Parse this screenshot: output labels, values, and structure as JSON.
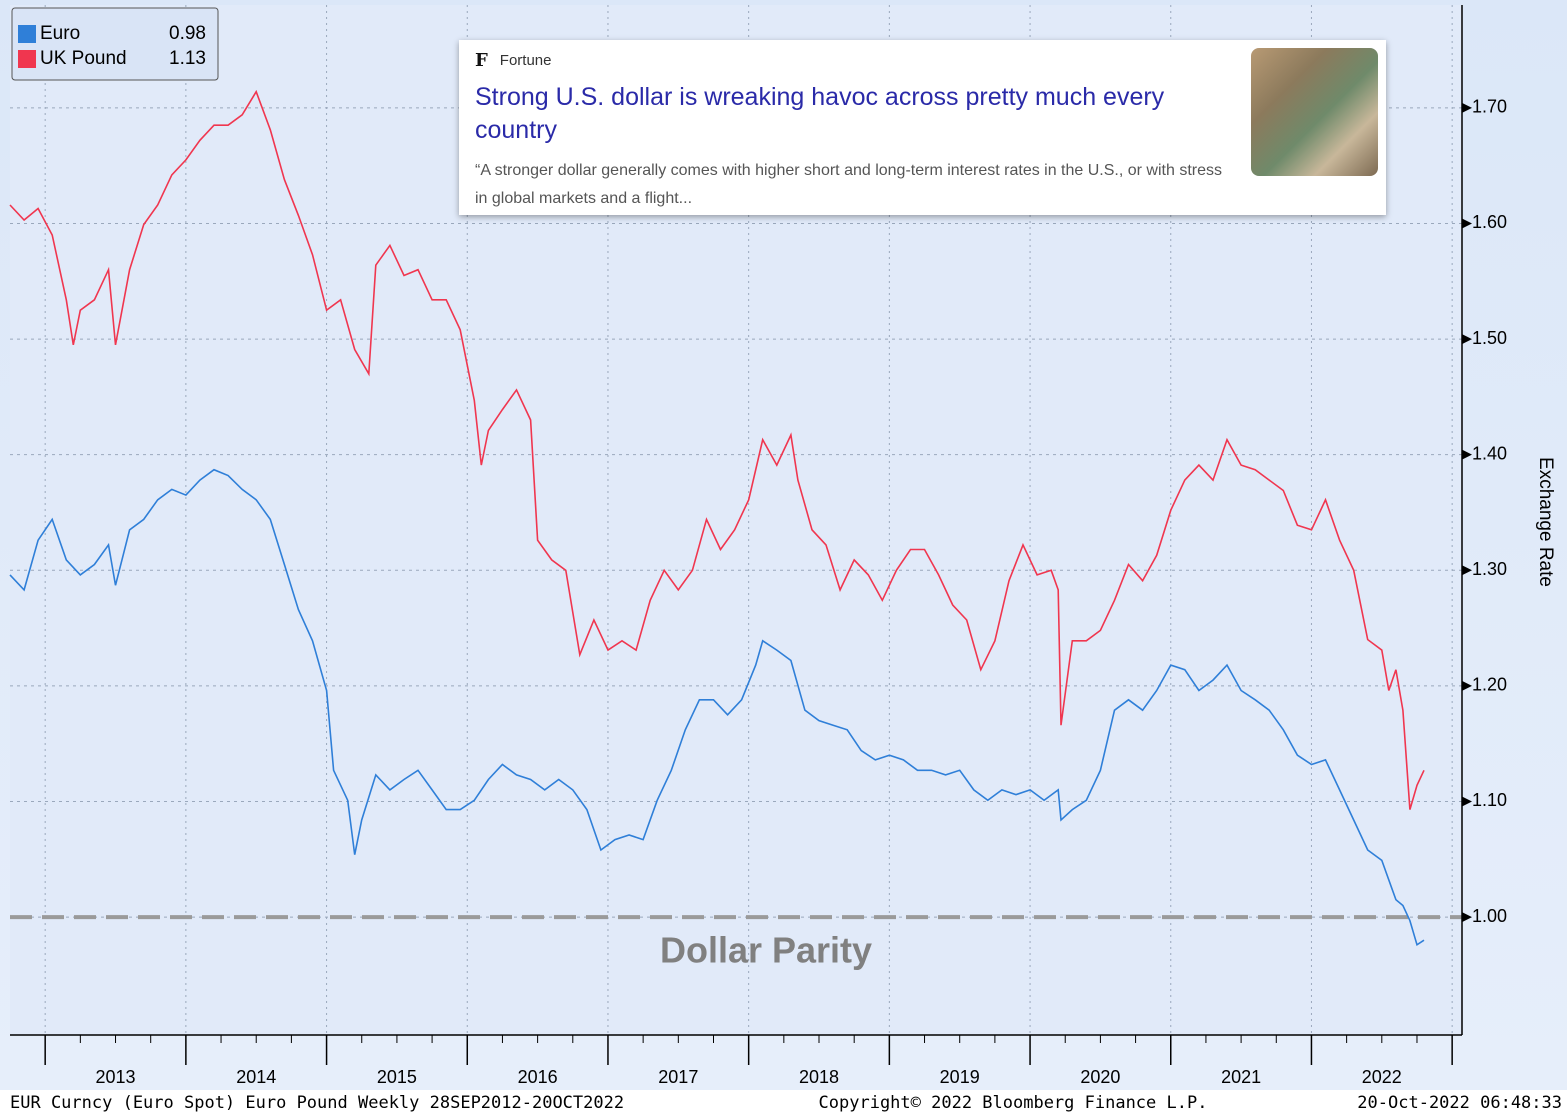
{
  "chart_data": {
    "type": "line",
    "y_label": "Exchange Rate",
    "xlim": [
      2012.75,
      2023.07
    ],
    "ylim": [
      0.898,
      1.789
    ],
    "xticks": [
      {
        "value": 2013.5,
        "label": "2013"
      },
      {
        "value": 2014.5,
        "label": "2014"
      },
      {
        "value": 2015.5,
        "label": "2015"
      },
      {
        "value": 2016.5,
        "label": "2016"
      },
      {
        "value": 2017.5,
        "label": "2017"
      },
      {
        "value": 2018.5,
        "label": "2018"
      },
      {
        "value": 2019.5,
        "label": "2019"
      },
      {
        "value": 2020.5,
        "label": "2020"
      },
      {
        "value": 2021.5,
        "label": "2021"
      },
      {
        "value": 2022.5,
        "label": "2022"
      }
    ],
    "yticks": [
      {
        "value": 1.0,
        "label": "1.00"
      },
      {
        "value": 1.1,
        "label": "1.10"
      },
      {
        "value": 1.2,
        "label": "1.20"
      },
      {
        "value": 1.3,
        "label": "1.30"
      },
      {
        "value": 1.4,
        "label": "1.40"
      },
      {
        "value": 1.5,
        "label": "1.50"
      },
      {
        "value": 1.6,
        "label": "1.60"
      },
      {
        "value": 1.7,
        "label": "1.70"
      }
    ],
    "grid": true,
    "legend": "upper left",
    "reference_line": {
      "value": 1,
      "label": "Dollar Parity"
    },
    "series": [
      {
        "name": "Euro",
        "color": "#2f7fd8",
        "last_value": 0.98,
        "x": [
          2012.75,
          2012.85,
          2012.95,
          2013.05,
          2013.15,
          2013.25,
          2013.35,
          2013.45,
          2013.5,
          2013.6,
          2013.7,
          2013.8,
          2013.9,
          2014.0,
          2014.1,
          2014.2,
          2014.3,
          2014.4,
          2014.5,
          2014.6,
          2014.7,
          2014.8,
          2014.9,
          2015.0,
          2015.05,
          2015.15,
          2015.2,
          2015.25,
          2015.35,
          2015.45,
          2015.55,
          2015.65,
          2015.75,
          2015.85,
          2015.95,
          2016.05,
          2016.15,
          2016.25,
          2016.35,
          2016.45,
          2016.55,
          2016.65,
          2016.75,
          2016.85,
          2016.95,
          2017.05,
          2017.15,
          2017.25,
          2017.35,
          2017.45,
          2017.55,
          2017.65,
          2017.75,
          2017.85,
          2017.95,
          2018.05,
          2018.1,
          2018.2,
          2018.3,
          2018.4,
          2018.5,
          2018.6,
          2018.7,
          2018.8,
          2018.9,
          2019.0,
          2019.1,
          2019.2,
          2019.3,
          2019.4,
          2019.5,
          2019.6,
          2019.7,
          2019.8,
          2019.9,
          2020.0,
          2020.1,
          2020.2,
          2020.22,
          2020.3,
          2020.4,
          2020.5,
          2020.6,
          2020.7,
          2020.8,
          2020.9,
          2021.0,
          2021.1,
          2021.2,
          2021.3,
          2021.4,
          2021.5,
          2021.6,
          2021.7,
          2021.8,
          2021.9,
          2022.0,
          2022.1,
          2022.2,
          2022.3,
          2022.4,
          2022.5,
          2022.6,
          2022.65,
          2022.7,
          2022.75,
          2022.8
        ],
        "values": [
          1.296,
          1.283,
          1.326,
          1.344,
          1.309,
          1.296,
          1.305,
          1.322,
          1.287,
          1.335,
          1.344,
          1.361,
          1.37,
          1.365,
          1.378,
          1.387,
          1.382,
          1.37,
          1.361,
          1.344,
          1.305,
          1.266,
          1.239,
          1.196,
          1.127,
          1.101,
          1.054,
          1.084,
          1.123,
          1.11,
          1.119,
          1.127,
          1.11,
          1.093,
          1.093,
          1.101,
          1.119,
          1.132,
          1.123,
          1.119,
          1.11,
          1.119,
          1.11,
          1.093,
          1.058,
          1.067,
          1.071,
          1.067,
          1.101,
          1.127,
          1.162,
          1.188,
          1.188,
          1.175,
          1.188,
          1.218,
          1.239,
          1.231,
          1.222,
          1.179,
          1.17,
          1.166,
          1.162,
          1.144,
          1.136,
          1.14,
          1.136,
          1.127,
          1.127,
          1.123,
          1.127,
          1.11,
          1.101,
          1.11,
          1.106,
          1.11,
          1.101,
          1.11,
          1.084,
          1.093,
          1.101,
          1.127,
          1.179,
          1.188,
          1.179,
          1.196,
          1.218,
          1.214,
          1.196,
          1.205,
          1.218,
          1.196,
          1.188,
          1.179,
          1.162,
          1.14,
          1.132,
          1.136,
          1.11,
          1.084,
          1.058,
          1.049,
          1.015,
          1.01,
          0.997,
          0.976,
          0.98
        ]
      },
      {
        "name": "UK Pound",
        "color": "#f0364f",
        "last_value": 1.13,
        "x": [
          2012.75,
          2012.85,
          2012.95,
          2013.05,
          2013.15,
          2013.2,
          2013.25,
          2013.35,
          2013.45,
          2013.5,
          2013.6,
          2013.7,
          2013.8,
          2013.9,
          2014.0,
          2014.1,
          2014.2,
          2014.3,
          2014.4,
          2014.5,
          2014.6,
          2014.7,
          2014.8,
          2014.9,
          2015.0,
          2015.1,
          2015.2,
          2015.3,
          2015.35,
          2015.45,
          2015.55,
          2015.65,
          2015.75,
          2015.85,
          2015.95,
          2016.05,
          2016.1,
          2016.15,
          2016.25,
          2016.35,
          2016.45,
          2016.5,
          2016.6,
          2016.7,
          2016.8,
          2016.9,
          2017.0,
          2017.1,
          2017.2,
          2017.3,
          2017.4,
          2017.5,
          2017.6,
          2017.7,
          2017.8,
          2017.9,
          2018.0,
          2018.1,
          2018.2,
          2018.3,
          2018.35,
          2018.45,
          2018.55,
          2018.65,
          2018.75,
          2018.85,
          2018.95,
          2019.05,
          2019.15,
          2019.25,
          2019.35,
          2019.45,
          2019.55,
          2019.65,
          2019.75,
          2019.85,
          2019.95,
          2020.05,
          2020.15,
          2020.2,
          2020.22,
          2020.3,
          2020.4,
          2020.5,
          2020.6,
          2020.7,
          2020.8,
          2020.9,
          2021.0,
          2021.1,
          2021.2,
          2021.3,
          2021.4,
          2021.5,
          2021.6,
          2021.7,
          2021.8,
          2021.9,
          2022.0,
          2022.1,
          2022.2,
          2022.3,
          2022.4,
          2022.5,
          2022.55,
          2022.6,
          2022.65,
          2022.7,
          2022.75,
          2022.8
        ],
        "values": [
          1.616,
          1.603,
          1.613,
          1.59,
          1.534,
          1.495,
          1.525,
          1.534,
          1.56,
          1.495,
          1.56,
          1.599,
          1.616,
          1.642,
          1.655,
          1.672,
          1.685,
          1.685,
          1.694,
          1.714,
          1.681,
          1.638,
          1.607,
          1.573,
          1.525,
          1.534,
          1.491,
          1.47,
          1.564,
          1.581,
          1.555,
          1.56,
          1.534,
          1.534,
          1.508,
          1.447,
          1.391,
          1.421,
          1.439,
          1.456,
          1.43,
          1.326,
          1.309,
          1.3,
          1.227,
          1.257,
          1.231,
          1.239,
          1.231,
          1.274,
          1.3,
          1.283,
          1.3,
          1.344,
          1.318,
          1.335,
          1.361,
          1.413,
          1.391,
          1.417,
          1.378,
          1.335,
          1.322,
          1.283,
          1.309,
          1.296,
          1.274,
          1.3,
          1.318,
          1.318,
          1.296,
          1.27,
          1.257,
          1.214,
          1.239,
          1.291,
          1.322,
          1.296,
          1.3,
          1.283,
          1.166,
          1.239,
          1.239,
          1.248,
          1.274,
          1.305,
          1.291,
          1.313,
          1.352,
          1.378,
          1.391,
          1.378,
          1.413,
          1.391,
          1.387,
          1.378,
          1.369,
          1.339,
          1.335,
          1.361,
          1.326,
          1.3,
          1.24,
          1.231,
          1.196,
          1.214,
          1.179,
          1.093,
          1.114,
          1.127
        ]
      }
    ],
    "footer": {
      "left": "EUR Curncy (Euro Spot) Euro Pound  Weekly 28SEP2012-20OCT2022",
      "center": "Copyright© 2022 Bloomberg Finance L.P.",
      "right": "20-Oct-2022 06:48:33"
    }
  },
  "news_card": {
    "source": "Fortune",
    "headline": "Strong U.S. dollar is wreaking havoc across pretty much every country",
    "snippet": "“A stronger dollar generally comes with higher short and long-term interest rates in the U.S., or with stress in global markets and a flight..."
  }
}
